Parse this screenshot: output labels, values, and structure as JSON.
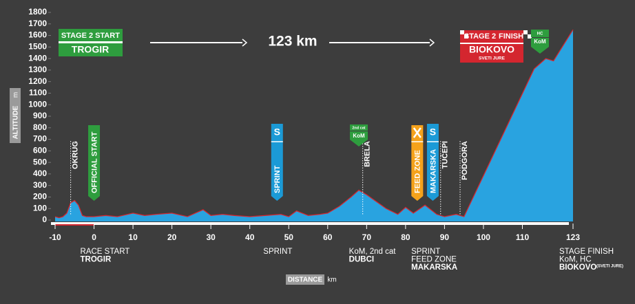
{
  "chart_data": {
    "type": "area",
    "x": [
      -10,
      -9,
      -8,
      -7,
      -6,
      -5,
      -4,
      -3,
      -2,
      0,
      3,
      6,
      10,
      13,
      16,
      20,
      24,
      28,
      30,
      33,
      36,
      40,
      44,
      48,
      50,
      52,
      55,
      58,
      60,
      63,
      66,
      68,
      70,
      75,
      78,
      80,
      82,
      85,
      88,
      90,
      93,
      95,
      113,
      116,
      118,
      123
    ],
    "series": [
      {
        "name": "Altitude",
        "color": "#29a3e0",
        "line_color": "#d4262f",
        "values": [
          30,
          20,
          30,
          60,
          150,
          170,
          130,
          40,
          30,
          30,
          40,
          30,
          60,
          40,
          50,
          60,
          30,
          90,
          40,
          50,
          40,
          30,
          40,
          50,
          30,
          80,
          40,
          50,
          60,
          120,
          200,
          260,
          220,
          100,
          50,
          110,
          60,
          130,
          50,
          30,
          50,
          30,
          1310,
          1400,
          1380,
          1650
        ]
      }
    ],
    "xlim": [
      -10,
      123
    ],
    "xticks": [
      -10,
      0,
      10,
      20,
      30,
      40,
      50,
      60,
      70,
      80,
      90,
      100,
      110,
      123
    ],
    "ylim": [
      0,
      1800
    ],
    "yticks": [
      0,
      100,
      200,
      300,
      400,
      500,
      600,
      700,
      800,
      900,
      1000,
      1100,
      1200,
      1300,
      1400,
      1500,
      1600,
      1700,
      1800
    ],
    "y_label": "ALTITUDE",
    "y_unit": "m",
    "x_label": "DISTANCE",
    "x_unit": "km",
    "annotations": [
      {
        "label": "OKRUG",
        "km": -6
      },
      {
        "label": "OFFICIAL START",
        "km": 0,
        "color": "#2e9d3e"
      },
      {
        "label": "SPRINT",
        "km": 47,
        "color": "#1b9ad6",
        "icon": "S"
      },
      {
        "label": "BRELA",
        "km": 69
      },
      {
        "label": "FEED ZONE",
        "km": 83,
        "color": "#f5a21b"
      },
      {
        "label": "MAKARSKA",
        "km": 87,
        "color": "#1b9ad6",
        "icon": "S"
      },
      {
        "label": "TUČEPI",
        "km": 89
      },
      {
        "label": "PODGORA",
        "km": 94
      }
    ],
    "kom_badge": {
      "cat": "2nd cat",
      "label": "KoM",
      "km": 68
    },
    "waypoints": [
      {
        "km": 0,
        "lines": [
          {
            "text": "RACE START",
            "bold": false
          },
          {
            "text": "TROGIR",
            "bold": true
          }
        ]
      },
      {
        "km": 47,
        "lines": [
          {
            "text": "SPRINT",
            "bold": false
          }
        ]
      },
      {
        "km": 69,
        "lines": [
          {
            "text": "KoM, 2nd cat",
            "bold": false
          },
          {
            "text": "DUBCI",
            "bold": true
          }
        ]
      },
      {
        "km": 85,
        "lines": [
          {
            "text": "SPRINT",
            "bold": false
          },
          {
            "text": "FEED ZONE",
            "bold": false
          },
          {
            "text": "MAKARSKA",
            "bold": true
          }
        ]
      },
      {
        "km": 123,
        "lines": [
          {
            "text": "STAGE FINISH",
            "bold": false
          },
          {
            "text": "KoM, HC",
            "bold": false
          },
          {
            "text": "BIOKOVO",
            "bold": true,
            "note": "(SVETI JURE)"
          }
        ]
      }
    ],
    "start_box": {
      "stage": "STAGE 2",
      "word": "START",
      "town": "TROGIR"
    },
    "distance": "123 km",
    "finish_box": {
      "stage": "STAGE 2",
      "word": "FINISH",
      "town": "BIOKOVO",
      "sub": "SVETI JURE"
    },
    "hc_badge": {
      "cat": "HC",
      "label": "KoM"
    }
  }
}
